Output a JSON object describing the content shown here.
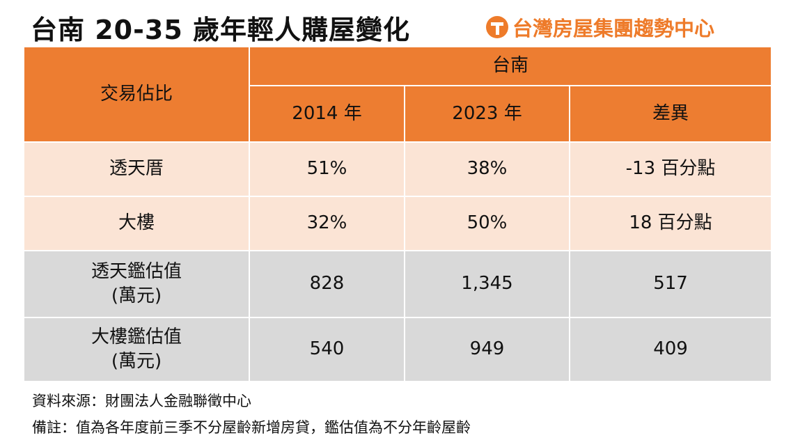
{
  "title": "台南 20-35 歲年輕人購屋變化",
  "logo": {
    "text": "台灣房屋集團趨勢中心",
    "icon": "taiwan-realty-logo-icon",
    "color": "#EE7B2A"
  },
  "colors": {
    "header": "#ED7D31",
    "row_light": "#FBE4D5",
    "row_gray": "#D9D9D9"
  },
  "table": {
    "corner_header": "交易佔比",
    "group_header": "台南",
    "columns": [
      "2014 年",
      "2023 年",
      "差異"
    ],
    "rows": [
      {
        "label": "透天厝",
        "values": [
          "51%",
          "38%",
          "-13 百分點"
        ]
      },
      {
        "label": "大樓",
        "values": [
          "32%",
          "50%",
          "18 百分點"
        ]
      },
      {
        "label": "透天鑑估值",
        "sub": "(萬元)",
        "values": [
          "828",
          "1,345",
          "517"
        ]
      },
      {
        "label": "大樓鑑估值",
        "sub": "(萬元)",
        "values": [
          "540",
          "949",
          "409"
        ]
      }
    ]
  },
  "footer": {
    "source": "資料來源：財團法人金融聯徵中心",
    "note": "備註：值為各年度前三季不分屋齡新增房貸，鑑估值為不分年齡屋齡"
  }
}
